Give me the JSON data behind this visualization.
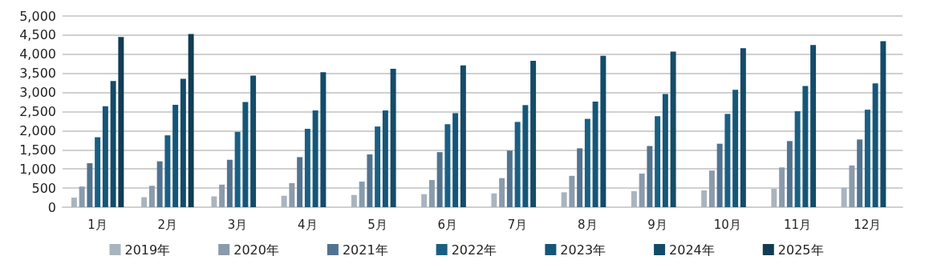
{
  "chart_data": {
    "type": "bar",
    "categories": [
      "1月",
      "2月",
      "3月",
      "4月",
      "5月",
      "6月",
      "7月",
      "8月",
      "9月",
      "10月",
      "11月",
      "12月"
    ],
    "series": [
      {
        "name": "2019年",
        "color": "#a9b4be",
        "values": [
          250,
          260,
          280,
          300,
          320,
          340,
          360,
          390,
          420,
          440,
          480,
          510
        ]
      },
      {
        "name": "2020年",
        "color": "#8a9bab",
        "values": [
          540,
          560,
          590,
          630,
          670,
          710,
          760,
          820,
          880,
          960,
          1040,
          1090
        ]
      },
      {
        "name": "2021年",
        "color": "#52738f",
        "values": [
          1150,
          1200,
          1240,
          1310,
          1380,
          1440,
          1480,
          1540,
          1600,
          1660,
          1730,
          1770
        ]
      },
      {
        "name": "2022年",
        "color": "#1a5f82",
        "values": [
          1830,
          1880,
          1970,
          2050,
          2110,
          2170,
          2230,
          2310,
          2380,
          2440,
          2510,
          2550
        ]
      },
      {
        "name": "2023年",
        "color": "#155677",
        "values": [
          2640,
          2680,
          2750,
          2530,
          2530,
          2460,
          2670,
          2760,
          2960,
          3070,
          3170,
          3240
        ]
      },
      {
        "name": "2024年",
        "color": "#144b68",
        "values": [
          3300,
          3360,
          3440,
          3530,
          3620,
          3710,
          3830,
          3960,
          4070,
          4160,
          4240,
          4340
        ]
      },
      {
        "name": "2025年",
        "color": "#113c53",
        "values": [
          4450,
          4530,
          null,
          null,
          null,
          null,
          null,
          null,
          null,
          null,
          null,
          null
        ]
      }
    ],
    "ylim": [
      0,
      5000
    ],
    "yticks": [
      0,
      500,
      {
        "value": 1000,
        "label": "1,000"
      },
      {
        "value": 1500,
        "label": "1,500"
      },
      {
        "value": 2000,
        "label": "2,000"
      },
      {
        "value": 2500,
        "label": "2,500"
      },
      {
        "value": 3000,
        "label": "3,000"
      },
      {
        "value": 3500,
        "label": "3,500"
      },
      {
        "value": 4000,
        "label": "4,000"
      },
      {
        "value": 4500,
        "label": "4,500"
      },
      {
        "value": 5000,
        "label": "5,000"
      }
    ],
    "grid": "y",
    "legend": "bottom"
  }
}
